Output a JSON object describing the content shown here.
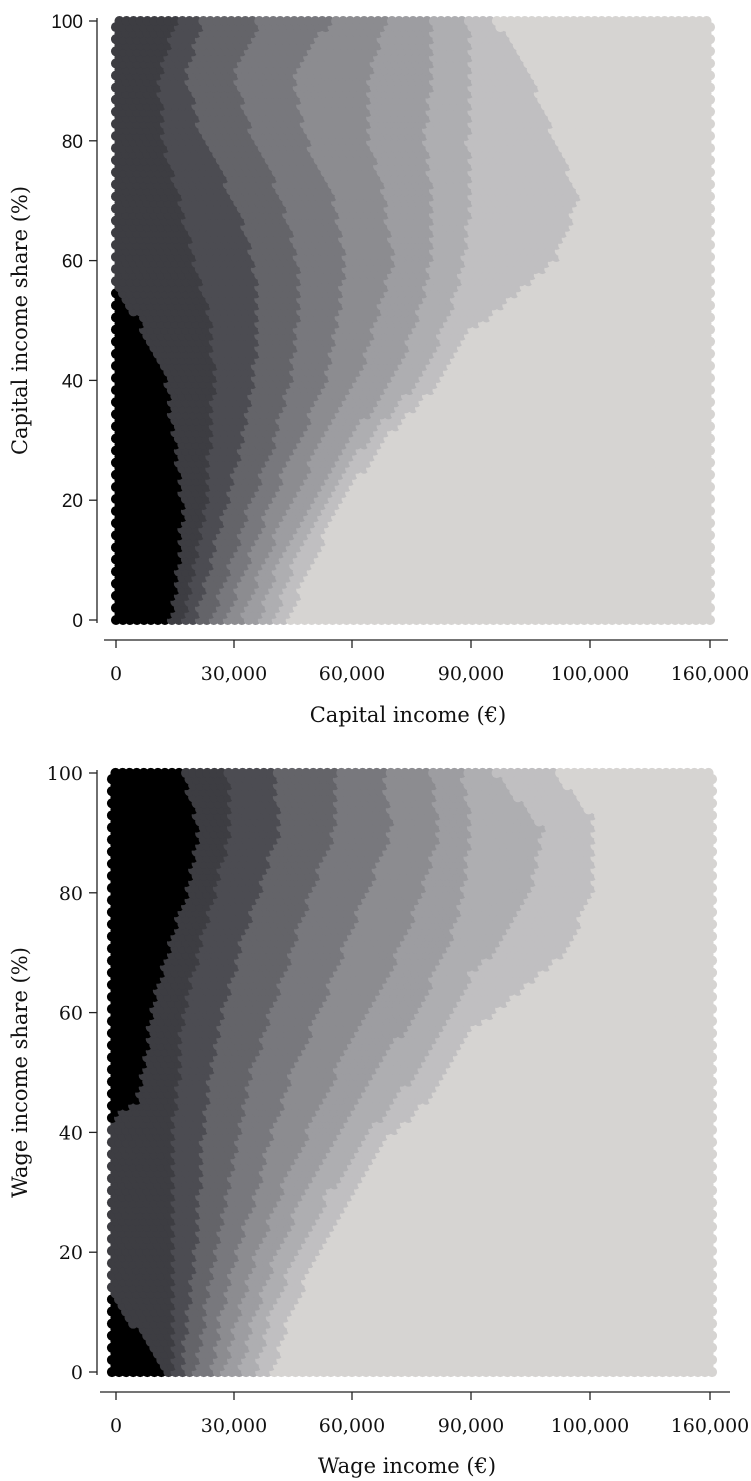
{
  "chart_data": [
    {
      "type": "heatmap",
      "xlabel": "Capital income (€)",
      "ylabel": "Capital income share (%)",
      "x_ticks": [
        "0",
        "30,000",
        "60,000",
        "90,000",
        "100,000",
        "160,000"
      ],
      "y_ticks": [
        "0",
        "20",
        "40",
        "60",
        "80",
        "100"
      ],
      "ylim": [
        0,
        100
      ],
      "grid": false,
      "levels": [
        {
          "level": 0,
          "color": "#000000"
        },
        {
          "level": 1,
          "color": "#3d3d42"
        },
        {
          "level": 2,
          "color": "#4c4c52"
        },
        {
          "level": 3,
          "color": "#646469"
        },
        {
          "level": 4,
          "color": "#78787d"
        },
        {
          "level": 5,
          "color": "#8c8c90"
        },
        {
          "level": 6,
          "color": "#9d9da1"
        },
        {
          "level": 7,
          "color": "#aeaeb1"
        },
        {
          "level": 8,
          "color": "#c0bfc1"
        },
        {
          "level": 9,
          "color": "#d6d4d2"
        }
      ],
      "contour_boundaries_x_at_y": {
        "y": [
          1,
          10,
          20,
          30,
          40,
          50,
          60,
          70,
          80,
          90,
          99
        ],
        "b0": [
          14000,
          16000,
          17000,
          15000,
          13000,
          6000,
          null,
          null,
          null,
          null,
          null
        ],
        "b1": [
          17000,
          20000,
          23000,
          24000,
          25000,
          24000,
          20000,
          16000,
          12000,
          11000,
          15000
        ],
        "b2": [
          20000,
          24000,
          28000,
          32000,
          35000,
          36000,
          35000,
          30000,
          22000,
          18000,
          22000
        ],
        "b3": [
          24000,
          29000,
          34000,
          40000,
          44000,
          46000,
          46000,
          42000,
          35000,
          30000,
          36000
        ],
        "b4": [
          28000,
          33000,
          39000,
          46000,
          53000,
          56000,
          58000,
          55000,
          48000,
          45000,
          54000
        ],
        "b5": [
          32000,
          37000,
          44000,
          52000,
          61000,
          66000,
          70000,
          68000,
          64000,
          64000,
          68000
        ],
        "b6": [
          36000,
          41000,
          49000,
          58000,
          70000,
          76000,
          80000,
          80000,
          78000,
          80000,
          80000
        ],
        "b7": [
          40000,
          45000,
          53000,
          63000,
          76000,
          84000,
          88000,
          90000,
          89000,
          90000,
          89000
        ],
        "b8": [
          44000,
          49000,
          57000,
          67000,
          82000,
          91000,
          97000,
          99000,
          97000,
          95000,
          92000
        ]
      }
    },
    {
      "type": "heatmap",
      "xlabel": "Wage income (€)",
      "ylabel": "Wage income share (%)",
      "x_ticks": [
        "0",
        "30,000",
        "60,000",
        "90,000",
        "100,000",
        "160,000"
      ],
      "y_ticks": [
        "0",
        "20",
        "40",
        "60",
        "80",
        "100"
      ],
      "ylim": [
        0,
        100
      ],
      "grid": false,
      "levels": [
        {
          "level": 0,
          "color": "#000000"
        },
        {
          "level": 1,
          "color": "#3d3d42"
        },
        {
          "level": 2,
          "color": "#4c4c52"
        },
        {
          "level": 3,
          "color": "#646469"
        },
        {
          "level": 4,
          "color": "#78787d"
        },
        {
          "level": 5,
          "color": "#8c8c90"
        },
        {
          "level": 6,
          "color": "#9d9da1"
        },
        {
          "level": 7,
          "color": "#aeaeb1"
        },
        {
          "level": 8,
          "color": "#c0bfc1"
        },
        {
          "level": 9,
          "color": "#d6d4d2"
        }
      ],
      "contour_boundaries_x_at_y": {
        "y": [
          1,
          5,
          9,
          20,
          30,
          40,
          45,
          50,
          60,
          70,
          80,
          90,
          99
        ],
        "b0": [
          13000,
          10000,
          5000,
          null,
          null,
          null,
          6000,
          8000,
          10000,
          14000,
          19000,
          22000,
          18000
        ],
        "b1": [
          15000,
          15000,
          15000,
          15000,
          15000,
          15000,
          16000,
          17000,
          18000,
          22000,
          26000,
          30000,
          29000
        ],
        "b2": [
          18000,
          18000,
          19000,
          21000,
          22000,
          23000,
          24000,
          25000,
          28000,
          32000,
          37000,
          42000,
          41000
        ],
        "b3": [
          21000,
          22000,
          23000,
          26000,
          29000,
          32000,
          33000,
          35000,
          40000,
          45000,
          50000,
          56000,
          56000
        ],
        "b4": [
          25000,
          26000,
          27000,
          31000,
          36000,
          40000,
          43000,
          45000,
          52000,
          58000,
          64000,
          70000,
          68000
        ],
        "b5": [
          28000,
          30000,
          31000,
          36000,
          42000,
          49000,
          52000,
          56000,
          64000,
          72000,
          78000,
          82000,
          80000
        ],
        "b6": [
          32000,
          34000,
          35000,
          41000,
          48000,
          57000,
          61000,
          66000,
          76000,
          84000,
          88000,
          90000,
          88000
        ],
        "b7": [
          36000,
          38000,
          39000,
          46000,
          54000,
          64000,
          70000,
          76000,
          86000,
          92000,
          95000,
          96000,
          92000
        ],
        "b8": [
          40000,
          42000,
          44000,
          51000,
          60000,
          70000,
          78000,
          84000,
          92000,
          98000,
          100000,
          101000,
          97000
        ]
      }
    }
  ]
}
